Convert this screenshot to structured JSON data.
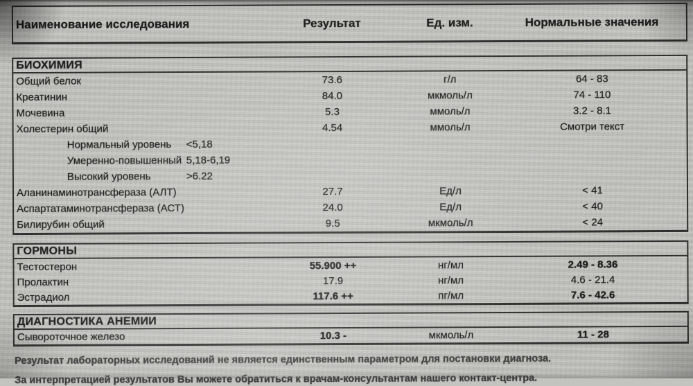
{
  "header": {
    "columns": [
      "Наименование исследования",
      "Результат",
      "Ед. изм.",
      "Нормальные значения"
    ]
  },
  "sections": [
    {
      "title": "БИОХИМИЯ",
      "rows": [
        {
          "name": "Общий белок",
          "result": "73.6",
          "unit": "г/л",
          "norm": "64 - 83"
        },
        {
          "name": "Креатинин",
          "result": "84.0",
          "unit": "мкмоль/л",
          "norm": "74 - 110"
        },
        {
          "name": "Мочевина",
          "result": "5.3",
          "unit": "ммоль/л",
          "norm": "3.2 - 8.1"
        },
        {
          "name": "Холестерин общий",
          "result": "4.54",
          "unit": "ммоль/л",
          "norm": "Смотри текст"
        },
        {
          "name": "Нормальный уровень",
          "result": "<5,18"
        },
        {
          "name": "Умеренно-повышенный",
          "result": "5,18-6,19"
        },
        {
          "name": "Высокий уровень",
          "result": ">6.22"
        },
        {
          "name": "Аланинаминотрансфераза (АЛТ)",
          "result": "27.7",
          "unit": "Ед/л",
          "norm": "< 41"
        },
        {
          "name": "Аспартатаминотрансфераза (АСТ)",
          "result": "24.0",
          "unit": "Ед/л",
          "norm": "< 40"
        },
        {
          "name": "Билирубин общий",
          "result": "9.5",
          "unit": "мкмоль/л",
          "norm": "< 24"
        }
      ]
    },
    {
      "title": "ГОРМОНЫ",
      "rows": [
        {
          "name": "Тестостерон",
          "result": "55.900 ++",
          "unit": "нг/мл",
          "norm": "2.49 - 8.36"
        },
        {
          "name": "Пролактин",
          "result": "17.9",
          "unit": "нг/мл",
          "norm": "4.6 - 21.4"
        },
        {
          "name": "Эстрадиол",
          "result": "117.6 ++",
          "unit": "пг/мл",
          "norm": "7.6 - 42.6"
        }
      ]
    },
    {
      "title": "ДИАГНОСТИКА АНЕМИИ",
      "rows": [
        {
          "name": "Сывороточное железо",
          "result": "10.3 -",
          "unit": "мкмоль/л",
          "norm": "11 - 28"
        }
      ]
    }
  ],
  "footer": {
    "line1": "Результат лабораторных исследований не является единственным параметром для постановки диагноза.",
    "line2": "За интерпретацией результатов Вы можете обратиться к врачам-консультантам нашего контакт-центра."
  }
}
